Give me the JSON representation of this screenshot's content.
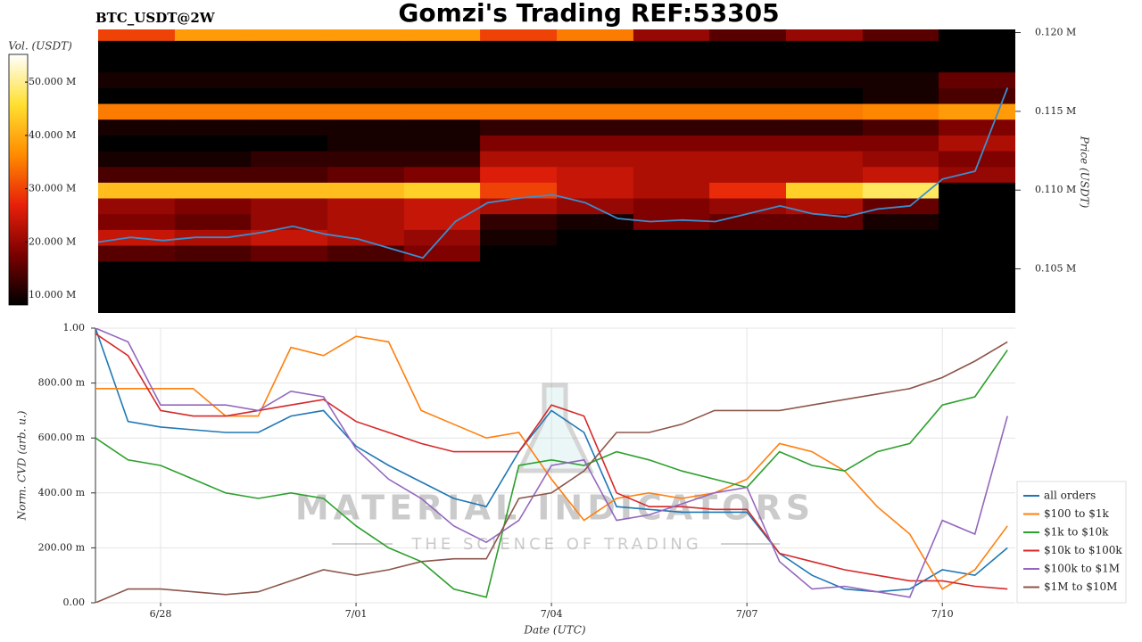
{
  "header": {
    "title": "Gomzi's Trading REF:53305",
    "ticker": "BTC_USDT@2W"
  },
  "chart_data": [
    {
      "type": "heatmap",
      "ylabel": "Price (USDT)",
      "xlim": [
        0,
        14.12
      ],
      "ylim": [
        0.1022,
        0.1202
      ],
      "yticks": [
        {
          "value": 0.105,
          "label": "0.105 M"
        },
        {
          "value": 0.11,
          "label": "0.110 M"
        },
        {
          "value": 0.115,
          "label": "0.115 M"
        },
        {
          "value": 0.12,
          "label": "0.120 M"
        }
      ],
      "x_edges": [
        0,
        1.18,
        2.35,
        3.53,
        4.71,
        5.88,
        7.06,
        8.24,
        9.41,
        10.59,
        11.77,
        12.94,
        14.12
      ],
      "y_edges": [
        0.1025,
        0.1035,
        0.1045,
        0.1055,
        0.1065,
        0.1075,
        0.1085,
        0.1095,
        0.1105,
        0.1115,
        0.1125,
        0.1135,
        0.1145,
        0.1155,
        0.1165,
        0.1175,
        0.1185,
        0.1195,
        0.1205
      ],
      "z": [
        [
          3,
          3,
          3,
          3,
          2,
          2,
          2,
          2,
          2,
          2,
          2,
          2
        ],
        [
          5,
          5,
          5,
          4,
          4,
          3,
          3,
          3,
          3,
          3,
          3,
          3
        ],
        [
          8,
          6,
          6,
          6,
          7,
          4,
          3,
          3,
          3,
          3,
          3,
          3
        ],
        [
          15,
          14,
          16,
          14,
          18,
          8,
          4,
          4,
          4,
          4,
          4,
          4
        ],
        [
          24,
          22,
          24,
          22,
          20,
          10,
          6,
          8,
          6,
          8,
          6,
          4
        ],
        [
          18,
          16,
          20,
          22,
          24,
          12,
          10,
          18,
          16,
          16,
          10,
          5
        ],
        [
          20,
          18,
          20,
          22,
          24,
          22,
          20,
          18,
          20,
          22,
          16,
          6
        ],
        [
          42,
          42,
          42,
          42,
          44,
          30,
          24,
          22,
          28,
          44,
          48,
          8
        ],
        [
          14,
          14,
          14,
          16,
          18,
          26,
          24,
          22,
          22,
          22,
          24,
          20
        ],
        [
          10,
          10,
          12,
          12,
          12,
          22,
          22,
          22,
          22,
          22,
          20,
          18
        ],
        [
          8,
          8,
          8,
          10,
          10,
          18,
          18,
          18,
          18,
          18,
          18,
          22
        ],
        [
          10,
          10,
          10,
          10,
          10,
          12,
          12,
          12,
          12,
          12,
          14,
          18
        ],
        [
          35,
          35,
          35,
          35,
          35,
          35,
          35,
          35,
          35,
          35,
          36,
          38
        ],
        [
          8,
          8,
          8,
          8,
          8,
          8,
          8,
          8,
          8,
          8,
          10,
          14
        ],
        [
          10,
          10,
          10,
          10,
          10,
          10,
          10,
          10,
          10,
          10,
          10,
          16
        ],
        [
          6,
          6,
          6,
          6,
          6,
          6,
          6,
          6,
          6,
          6,
          6,
          6
        ],
        [
          8,
          8,
          8,
          8,
          8,
          8,
          8,
          8,
          8,
          8,
          8,
          8
        ],
        [
          30,
          38,
          38,
          38,
          38,
          30,
          35,
          20,
          15,
          20,
          15,
          8
        ]
      ],
      "colorbar": {
        "label": "Vol. (USDT)",
        "lim": [
          8.2,
          55.2
        ],
        "ticks": [
          {
            "value": 10,
            "label": "10.000 M"
          },
          {
            "value": 20,
            "label": "20.000 M"
          },
          {
            "value": 30,
            "label": "30.000 M"
          },
          {
            "value": 40,
            "label": "40.000 M"
          },
          {
            "value": 50,
            "label": "50.000 M"
          }
        ],
        "colors": [
          "#000000",
          "#7a0000",
          "#e8200a",
          "#ff8c00",
          "#ffe030",
          "#ffffff"
        ]
      },
      "price_color": "#3a8fd0",
      "x": [
        0,
        0.5,
        1,
        1.5,
        2,
        2.5,
        3,
        3.5,
        4,
        4.5,
        5,
        5.5,
        6,
        6.5,
        7,
        7.5,
        8,
        8.5,
        9,
        9.5,
        10,
        10.5,
        11,
        11.5,
        12,
        12.5,
        13,
        13.5,
        14
      ],
      "price": [
        0.1067,
        0.107,
        0.1068,
        0.107,
        0.107,
        0.1073,
        0.1077,
        0.1072,
        0.1069,
        0.1063,
        0.1057,
        0.108,
        0.1092,
        0.1095,
        0.1097,
        0.1092,
        0.1082,
        0.108,
        0.1081,
        0.108,
        0.1085,
        0.109,
        0.1085,
        0.1083,
        0.1088,
        0.109,
        0.1107,
        0.1112,
        0.1165
      ]
    },
    {
      "type": "line",
      "xlabel": "Date (UTC)",
      "ylabel": "Norm. CVD (arb. u.)",
      "xlim": [
        0,
        14.12
      ],
      "ylim": [
        0,
        1
      ],
      "xticks": [
        {
          "value": 1,
          "label": "6/28"
        },
        {
          "value": 4,
          "label": "7/01"
        },
        {
          "value": 7,
          "label": "7/04"
        },
        {
          "value": 10,
          "label": "7/07"
        },
        {
          "value": 13,
          "label": "7/10"
        }
      ],
      "yticks": [
        {
          "value": 0,
          "label": "0.00"
        },
        {
          "value": 0.2,
          "label": "200.00 m"
        },
        {
          "value": 0.4,
          "label": "400.00 m"
        },
        {
          "value": 0.6,
          "label": "600.00 m"
        },
        {
          "value": 0.8,
          "label": "800.00 m"
        },
        {
          "value": 1,
          "label": "1.00"
        }
      ],
      "grid": true,
      "legend": "right",
      "watermark": {
        "title": "MATERIAL INDICATORS",
        "subtitle": "THE SCIENCE OF TRADING"
      },
      "x": [
        0,
        0.5,
        1,
        1.5,
        2,
        2.5,
        3,
        3.5,
        4,
        4.5,
        5,
        5.5,
        6,
        6.5,
        7,
        7.5,
        8,
        8.5,
        9,
        9.5,
        10,
        10.5,
        11,
        11.5,
        12,
        12.5,
        13,
        13.5,
        14
      ],
      "series": [
        {
          "name": "all orders",
          "color": "#1f77b4",
          "values": [
            1.0,
            0.66,
            0.64,
            0.63,
            0.62,
            0.62,
            0.68,
            0.7,
            0.57,
            0.5,
            0.44,
            0.38,
            0.35,
            0.55,
            0.7,
            0.62,
            0.35,
            0.34,
            0.33,
            0.33,
            0.33,
            0.18,
            0.1,
            0.05,
            0.04,
            0.05,
            0.12,
            0.1,
            0.2
          ]
        },
        {
          "name": "$100 to $1k",
          "color": "#ff7f0e",
          "values": [
            0.78,
            0.78,
            0.78,
            0.78,
            0.68,
            0.68,
            0.93,
            0.9,
            0.97,
            0.95,
            0.7,
            0.65,
            0.6,
            0.62,
            0.45,
            0.3,
            0.38,
            0.4,
            0.38,
            0.4,
            0.45,
            0.58,
            0.55,
            0.48,
            0.35,
            0.25,
            0.05,
            0.12,
            0.28
          ]
        },
        {
          "name": "$1k to $10k",
          "color": "#2ca02c",
          "values": [
            0.6,
            0.52,
            0.5,
            0.45,
            0.4,
            0.38,
            0.4,
            0.38,
            0.28,
            0.2,
            0.15,
            0.05,
            0.02,
            0.5,
            0.52,
            0.5,
            0.55,
            0.52,
            0.48,
            0.45,
            0.42,
            0.55,
            0.5,
            0.48,
            0.55,
            0.58,
            0.72,
            0.75,
            0.92
          ]
        },
        {
          "name": "$10k to $100k",
          "color": "#d62728",
          "values": [
            0.98,
            0.9,
            0.7,
            0.68,
            0.68,
            0.7,
            0.72,
            0.74,
            0.66,
            0.62,
            0.58,
            0.55,
            0.55,
            0.55,
            0.72,
            0.68,
            0.4,
            0.35,
            0.35,
            0.34,
            0.34,
            0.18,
            0.15,
            0.12,
            0.1,
            0.08,
            0.08,
            0.06,
            0.05
          ]
        },
        {
          "name": "$100k to $1M",
          "color": "#9467bd",
          "values": [
            1.0,
            0.95,
            0.72,
            0.72,
            0.72,
            0.7,
            0.77,
            0.75,
            0.56,
            0.45,
            0.38,
            0.28,
            0.22,
            0.3,
            0.5,
            0.52,
            0.3,
            0.32,
            0.36,
            0.4,
            0.42,
            0.15,
            0.05,
            0.06,
            0.04,
            0.02,
            0.3,
            0.25,
            0.68
          ]
        },
        {
          "name": "$1M to $10M",
          "color": "#8c564b",
          "values": [
            0.0,
            0.05,
            0.05,
            0.04,
            0.03,
            0.04,
            0.08,
            0.12,
            0.1,
            0.12,
            0.15,
            0.16,
            0.16,
            0.38,
            0.4,
            0.48,
            0.62,
            0.62,
            0.65,
            0.7,
            0.7,
            0.7,
            0.72,
            0.74,
            0.76,
            0.78,
            0.82,
            0.88,
            0.95
          ]
        }
      ]
    }
  ]
}
